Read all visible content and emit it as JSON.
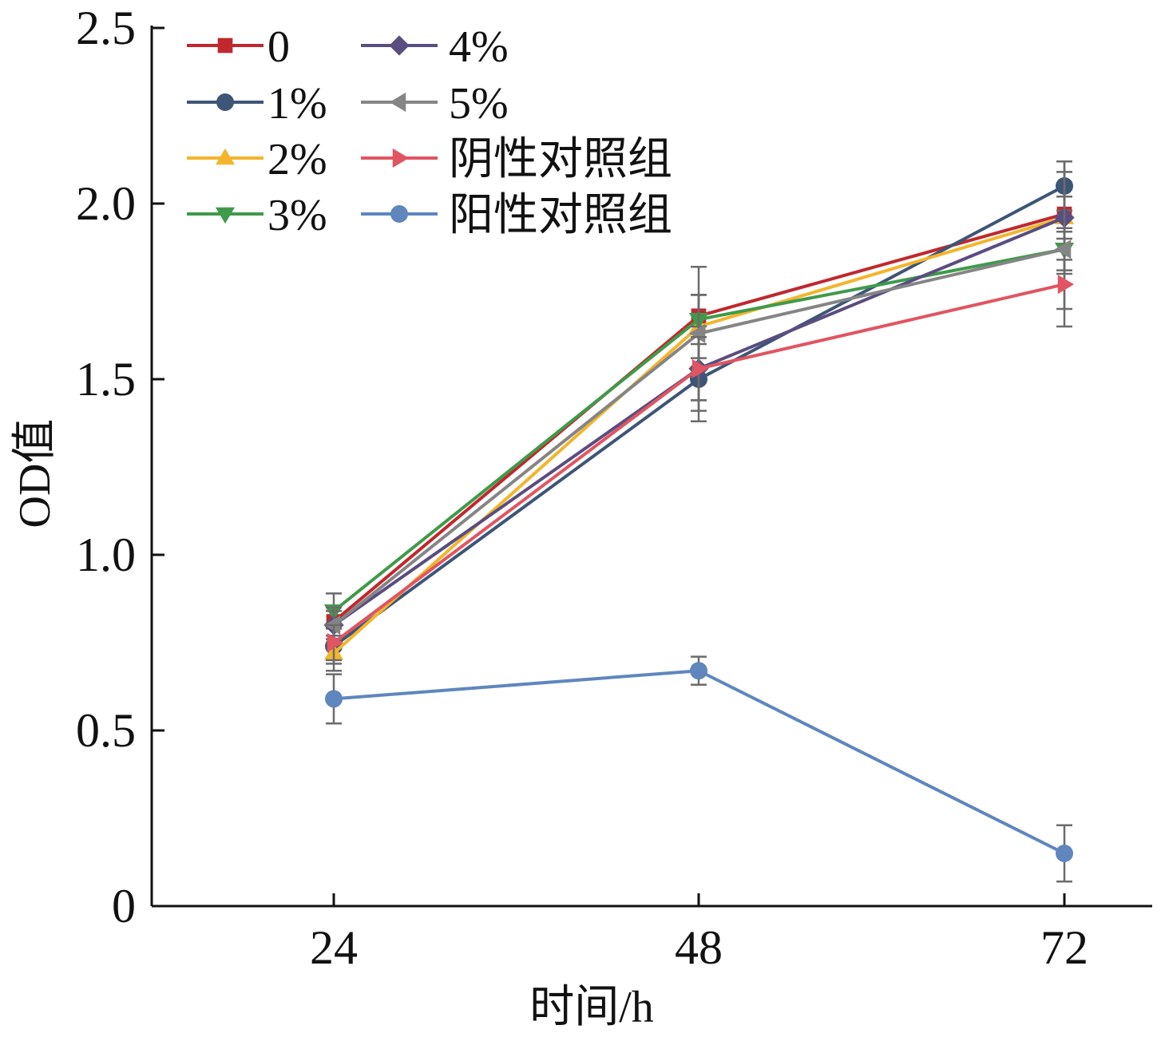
{
  "chart_data": {
    "type": "line",
    "title": "",
    "xlabel": "时间/h",
    "ylabel": "OD值",
    "x": [
      24,
      48,
      72
    ],
    "x_tick_labels": [
      "24",
      "48",
      "72"
    ],
    "ylim": [
      0,
      2.5
    ],
    "y_ticks": [
      0,
      0.5,
      1.0,
      1.5,
      2.0,
      2.5
    ],
    "y_tick_labels": [
      "0",
      "0.5",
      "1.0",
      "1.5",
      "2.0",
      "2.5"
    ],
    "grid": false,
    "legend_position": "top-left",
    "error_bars": true,
    "series": [
      {
        "name": "0",
        "color": "#c0282e",
        "marker": "square",
        "values": [
          0.81,
          1.68,
          1.97
        ],
        "errors": [
          0.04,
          0.06,
          0.05
        ]
      },
      {
        "name": "1%",
        "color": "#3d5577",
        "marker": "circle",
        "values": [
          0.74,
          1.5,
          2.05
        ],
        "errors": [
          0.05,
          0.12,
          0.07
        ]
      },
      {
        "name": "2%",
        "color": "#f2b52c",
        "marker": "triangle-up",
        "values": [
          0.72,
          1.65,
          1.96
        ],
        "errors": [
          0.05,
          0.09,
          0.06
        ]
      },
      {
        "name": "3%",
        "color": "#3f9a4a",
        "marker": "triangle-down",
        "values": [
          0.84,
          1.67,
          1.87
        ],
        "errors": [
          0.05,
          0.07,
          0.06
        ]
      },
      {
        "name": "4%",
        "color": "#5a4d80",
        "marker": "diamond",
        "values": [
          0.8,
          1.53,
          1.96
        ],
        "errors": [
          0.05,
          0.12,
          0.16
        ]
      },
      {
        "name": "5%",
        "color": "#858585",
        "marker": "triangle-left",
        "values": [
          0.8,
          1.63,
          1.87
        ],
        "errors": [
          0.04,
          0.19,
          0.22
        ]
      },
      {
        "name": "阴性对照组",
        "color": "#e05561",
        "marker": "triangle-right",
        "values": [
          0.75,
          1.53,
          1.77
        ],
        "errors": [
          0.05,
          0.09,
          0.07
        ]
      },
      {
        "name": "阳性对照组",
        "color": "#5f86bd",
        "marker": "circle",
        "values": [
          0.59,
          0.67,
          0.15
        ],
        "errors": [
          0.07,
          0.04,
          0.08
        ]
      }
    ]
  }
}
